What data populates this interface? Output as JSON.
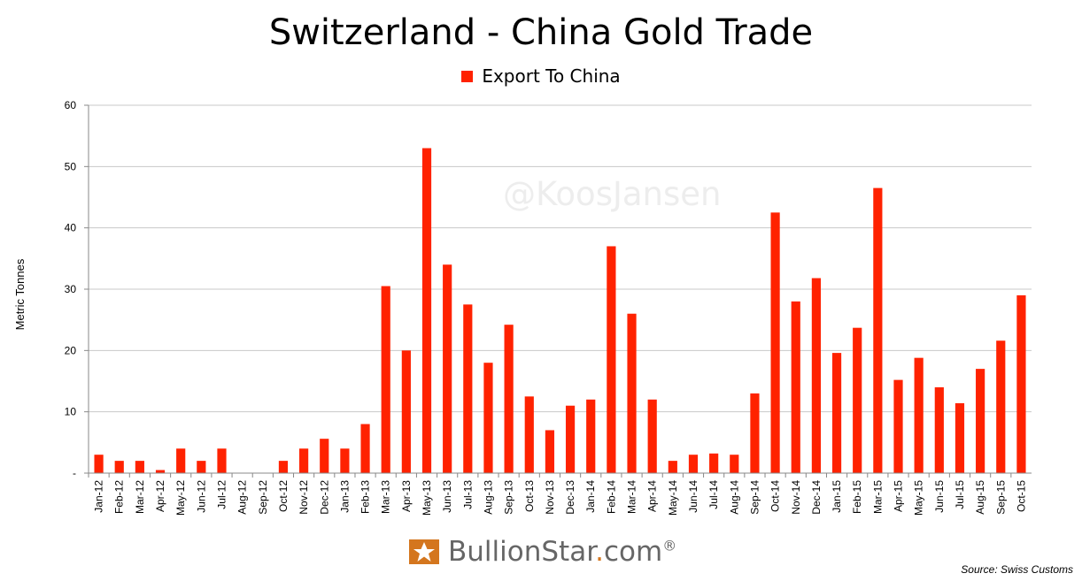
{
  "watermark": "@KoosJansen",
  "logo": {
    "brand": "BullionStar",
    "dot": ".",
    "tld": "com",
    "registered": "®"
  },
  "source": "Source: Swiss Customs",
  "chart_data": {
    "type": "bar",
    "title": "Switzerland - China Gold Trade",
    "ylabel": "Metric Tonnes",
    "xlabel": "",
    "ylim": [
      0,
      60
    ],
    "yticks": [
      "-",
      "10",
      "20",
      "30",
      "40",
      "50",
      "60"
    ],
    "grid": true,
    "legend_position": "top-center",
    "bar_color": "#ff2200",
    "categories": [
      "Jan-12",
      "Feb-12",
      "Mar-12",
      "Apr-12",
      "May-12",
      "Jun-12",
      "Jul-12",
      "Aug-12",
      "Sep-12",
      "Oct-12",
      "Nov-12",
      "Dec-12",
      "Jan-13",
      "Feb-13",
      "Mar-13",
      "Apr-13",
      "May-13",
      "Jun-13",
      "Jul-13",
      "Aug-13",
      "Sep-13",
      "Oct-13",
      "Nov-13",
      "Dec-13",
      "Jan-14",
      "Feb-14",
      "Mar-14",
      "Apr-14",
      "May-14",
      "Jun-14",
      "Jul-14",
      "Aug-14",
      "Sep-14",
      "Oct-14",
      "Nov-14",
      "Dec-14",
      "Jan-15",
      "Feb-15",
      "Mar-15",
      "Apr-15",
      "May-15",
      "Jun-15",
      "Jul-15",
      "Aug-15",
      "Sep-15",
      "Oct-15"
    ],
    "series": [
      {
        "name": "Export To China",
        "values": [
          3,
          2,
          2,
          0.5,
          4,
          2,
          4,
          0,
          0,
          2,
          4,
          5.6,
          4,
          8,
          30.5,
          20,
          53,
          34,
          27.5,
          18,
          24.2,
          12.5,
          7,
          11,
          12,
          37,
          26,
          12,
          2,
          3,
          3.2,
          3,
          13,
          42.5,
          28,
          31.8,
          19.6,
          23.7,
          46.5,
          15.2,
          18.8,
          14,
          11.4,
          17,
          21.6,
          29
        ]
      }
    ]
  }
}
